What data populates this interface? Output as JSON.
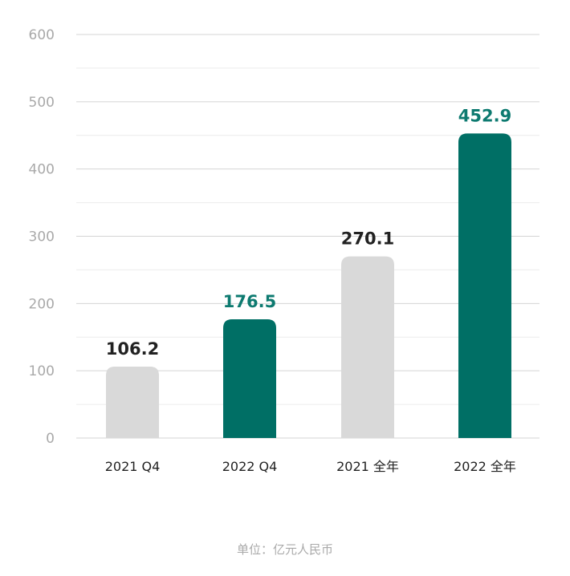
{
  "chart_data": {
    "type": "bar",
    "categories": [
      "2021 Q4",
      "2022 Q4",
      "2021 全年",
      "2022 全年"
    ],
    "values": [
      106.2,
      176.5,
      270.1,
      452.9
    ],
    "value_labels": [
      "106.2",
      "176.5",
      "270.1",
      "452.9"
    ],
    "title": "",
    "xlabel": "",
    "ylabel": "",
    "ylim": [
      0,
      600
    ],
    "yticks": [
      0,
      100,
      200,
      300,
      400,
      500,
      600
    ],
    "ytick_labels": [
      "0",
      "100",
      "200",
      "300",
      "400",
      "500",
      "600"
    ],
    "grid": true,
    "legend": "none",
    "note": "单位：亿元人民币",
    "colors": {
      "bars": [
        "#d9d9d9",
        "#006f65",
        "#d9d9d9",
        "#006f65"
      ],
      "value_labels": [
        "#222222",
        "#0d7a70",
        "#222222",
        "#0d7a70"
      ],
      "grid_major": "#d4d4d4",
      "grid_minor": "#ececec"
    }
  }
}
